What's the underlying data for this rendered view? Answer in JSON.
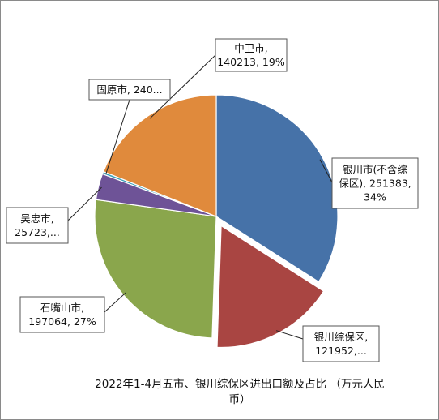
{
  "chart_data": {
    "type": "pie",
    "title": [
      "2022年1-4月五市、银川综保区进出口额及占比 （万元人民",
      "币）"
    ],
    "slices": [
      {
        "name": "银川市(不含综保区)",
        "value": 251383,
        "label": [
          "银川市(不含综",
          "保区), 251383,",
          "34%"
        ],
        "color": "#4672a8"
      },
      {
        "name": "银川综保区",
        "value": 121952,
        "label": [
          "银川综保区,",
          "121952,..."
        ],
        "color": "#a94542"
      },
      {
        "name": "石嘴山市",
        "value": 197064,
        "label": [
          "石嘴山市,",
          "197064, 27%"
        ],
        "color": "#8aa64c"
      },
      {
        "name": "吴忠市",
        "value": 25723,
        "label": [
          "吴忠市,",
          "25723,..."
        ],
        "color": "#6e5397"
      },
      {
        "name": "固原市",
        "value": 2400,
        "label": [
          "固原市, 240..."
        ],
        "color": "#3aa0b8"
      },
      {
        "name": "中卫市",
        "value": 140213,
        "label": [
          "中卫市,",
          "140213, 19%"
        ],
        "color": "#e08a3c"
      }
    ]
  }
}
